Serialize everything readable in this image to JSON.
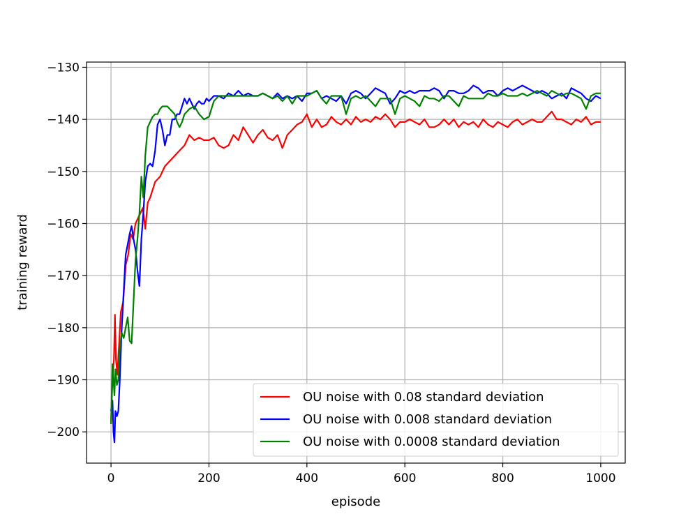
{
  "chart_data": {
    "type": "line",
    "title": "",
    "xlabel": "episode",
    "ylabel": "training reward",
    "xlim": [
      -50,
      1050
    ],
    "ylim": [
      -206,
      -129
    ],
    "xticks": [
      0,
      200,
      400,
      600,
      800,
      1000
    ],
    "yticks": [
      -200,
      -190,
      -180,
      -170,
      -160,
      -150,
      -140,
      -130
    ],
    "xtick_labels": [
      "0",
      "200",
      "400",
      "600",
      "800",
      "1000"
    ],
    "ytick_labels": [
      "−200",
      "−190",
      "−180",
      "−170",
      "−160",
      "−150",
      "−140",
      "−130"
    ],
    "grid": true,
    "legend_position": "lower-right",
    "series": [
      {
        "name": "OU noise with 0.08 standard deviation",
        "color": "#ff0000",
        "x": [
          0,
          3,
          6,
          8,
          10,
          13,
          16,
          20,
          25,
          30,
          35,
          40,
          45,
          50,
          55,
          60,
          65,
          70,
          75,
          80,
          90,
          100,
          110,
          120,
          130,
          140,
          150,
          160,
          170,
          180,
          190,
          200,
          210,
          220,
          230,
          240,
          250,
          260,
          270,
          280,
          290,
          300,
          310,
          320,
          330,
          340,
          350,
          360,
          370,
          380,
          390,
          400,
          410,
          420,
          430,
          440,
          450,
          460,
          470,
          480,
          490,
          500,
          510,
          520,
          530,
          540,
          550,
          560,
          570,
          580,
          590,
          600,
          610,
          620,
          630,
          640,
          650,
          660,
          670,
          680,
          690,
          700,
          710,
          720,
          730,
          740,
          750,
          760,
          770,
          780,
          790,
          800,
          810,
          820,
          830,
          840,
          850,
          860,
          870,
          880,
          890,
          900,
          910,
          920,
          930,
          940,
          950,
          960,
          970,
          980,
          990,
          1000
        ],
        "values": [
          -198,
          -190,
          -186,
          -177.5,
          -186,
          -189,
          -184,
          -177,
          -175,
          -168,
          -166,
          -162,
          -163,
          -160,
          -159,
          -158,
          -157,
          -161,
          -156,
          -155,
          -152,
          -151,
          -149,
          -148,
          -147,
          -146,
          -145,
          -143,
          -144,
          -143.5,
          -144,
          -144,
          -143.5,
          -145,
          -145.5,
          -145,
          -143,
          -144,
          -141.5,
          -143,
          -144.5,
          -143,
          -142,
          -143.5,
          -144,
          -143,
          -145.5,
          -143,
          -142,
          -141,
          -140.5,
          -139,
          -141.5,
          -140,
          -141.5,
          -141,
          -139.5,
          -140.5,
          -141,
          -140,
          -141,
          -139.5,
          -140.5,
          -140,
          -140.5,
          -139.5,
          -140,
          -139,
          -140,
          -141.5,
          -140.5,
          -140.5,
          -140,
          -140.5,
          -141,
          -140,
          -141.5,
          -141.5,
          -141,
          -140,
          -141,
          -140,
          -141.5,
          -140.5,
          -141,
          -140.5,
          -141.5,
          -140,
          -141,
          -141.5,
          -140.5,
          -141,
          -141.5,
          -140.5,
          -140,
          -141,
          -140.5,
          -140,
          -140.5,
          -140.5,
          -139.5,
          -138.5,
          -140,
          -140,
          -140.5,
          -141,
          -140,
          -140.5,
          -139.5,
          -141,
          -140.5,
          -140.5
        ]
      },
      {
        "name": "OU noise with 0.008 standard deviation",
        "color": "#0000ff",
        "x": [
          0,
          3,
          5,
          7,
          9,
          12,
          15,
          18,
          22,
          26,
          30,
          34,
          38,
          42,
          46,
          50,
          54,
          58,
          62,
          66,
          70,
          75,
          80,
          85,
          90,
          95,
          100,
          105,
          110,
          115,
          120,
          125,
          130,
          135,
          140,
          145,
          150,
          155,
          160,
          165,
          170,
          175,
          180,
          185,
          190,
          195,
          200,
          205,
          210,
          220,
          230,
          240,
          250,
          260,
          270,
          280,
          290,
          300,
          310,
          320,
          330,
          340,
          350,
          360,
          370,
          380,
          390,
          400,
          410,
          420,
          430,
          440,
          450,
          460,
          470,
          480,
          490,
          500,
          510,
          520,
          530,
          540,
          550,
          560,
          570,
          580,
          590,
          600,
          610,
          620,
          630,
          640,
          650,
          660,
          670,
          680,
          690,
          700,
          710,
          720,
          730,
          740,
          750,
          760,
          770,
          780,
          790,
          800,
          810,
          820,
          830,
          840,
          850,
          860,
          870,
          880,
          890,
          900,
          910,
          920,
          930,
          940,
          950,
          960,
          970,
          980,
          990,
          1000
        ],
        "values": [
          -196,
          -194,
          -200,
          -202,
          -196,
          -197,
          -196,
          -190,
          -180,
          -173,
          -166,
          -164,
          -162,
          -160.5,
          -163,
          -165,
          -169,
          -172,
          -163,
          -158,
          -152,
          -149,
          -148.5,
          -149,
          -146,
          -141,
          -140,
          -142,
          -145,
          -143,
          -143,
          -140,
          -140,
          -139,
          -139,
          -137.5,
          -136,
          -137,
          -136,
          -137,
          -138,
          -137,
          -136.5,
          -137,
          -137,
          -136,
          -136.5,
          -136,
          -135.5,
          -135.5,
          -136,
          -135,
          -135.5,
          -134.5,
          -135.5,
          -135,
          -135.5,
          -135.5,
          -135,
          -135.5,
          -136,
          -135,
          -136,
          -135.5,
          -136,
          -135.5,
          -136.5,
          -135,
          -135,
          -134.5,
          -136,
          -135.5,
          -136,
          -136.5,
          -135.5,
          -137,
          -135,
          -134.5,
          -135,
          -136,
          -135,
          -134,
          -134.5,
          -135,
          -137,
          -136,
          -134.5,
          -135,
          -134.5,
          -135,
          -134.5,
          -134.5,
          -134.5,
          -134,
          -134.5,
          -136,
          -134.5,
          -134.5,
          -135,
          -135,
          -134.5,
          -133.5,
          -134,
          -135,
          -134.5,
          -134.5,
          -135.5,
          -134.5,
          -134,
          -134.5,
          -134,
          -133.5,
          -134,
          -134.5,
          -135,
          -134.5,
          -135,
          -136,
          -135.5,
          -135,
          -136,
          -134,
          -134.5,
          -135,
          -136,
          -136.5,
          -135.5,
          -136
        ]
      },
      {
        "name": "OU noise with 0.0008 standard deviation",
        "color": "#008000",
        "x": [
          0,
          3,
          5,
          7,
          9,
          12,
          15,
          18,
          22,
          26,
          30,
          34,
          38,
          42,
          46,
          50,
          54,
          58,
          62,
          66,
          70,
          75,
          80,
          85,
          90,
          95,
          100,
          105,
          110,
          115,
          120,
          125,
          130,
          135,
          140,
          145,
          150,
          160,
          170,
          180,
          190,
          200,
          210,
          220,
          230,
          240,
          250,
          260,
          270,
          280,
          290,
          300,
          310,
          320,
          330,
          340,
          350,
          360,
          370,
          380,
          390,
          400,
          410,
          420,
          430,
          440,
          450,
          460,
          470,
          480,
          490,
          500,
          510,
          520,
          530,
          540,
          550,
          560,
          570,
          580,
          590,
          600,
          610,
          620,
          630,
          640,
          650,
          660,
          670,
          680,
          690,
          700,
          710,
          720,
          730,
          740,
          750,
          760,
          770,
          780,
          790,
          800,
          810,
          820,
          830,
          840,
          850,
          860,
          870,
          880,
          890,
          900,
          910,
          920,
          930,
          940,
          950,
          960,
          970,
          980,
          990,
          1000
        ],
        "values": [
          -198.5,
          -187,
          -190,
          -193,
          -188,
          -191,
          -190,
          -184,
          -181,
          -182,
          -180,
          -178,
          -182.5,
          -183,
          -175,
          -167,
          -163,
          -158,
          -151,
          -155,
          -147,
          -141.5,
          -140.5,
          -139.5,
          -139,
          -139,
          -138,
          -137.5,
          -137.5,
          -137.5,
          -138,
          -138.5,
          -139,
          -140.5,
          -141.5,
          -140.5,
          -139,
          -138,
          -137.5,
          -139,
          -140,
          -139.5,
          -136.5,
          -135.5,
          -135.5,
          -135.5,
          -135.5,
          -135.5,
          -135.5,
          -135.5,
          -135.5,
          -135.5,
          -135,
          -135.5,
          -136,
          -135.5,
          -136.5,
          -135.5,
          -137,
          -135.5,
          -135.5,
          -135.5,
          -135,
          -134.5,
          -136,
          -137,
          -135.5,
          -135.5,
          -135.5,
          -139,
          -136,
          -135.5,
          -136,
          -135.5,
          -136.5,
          -137.5,
          -136,
          -136,
          -136,
          -139,
          -136,
          -135.5,
          -136,
          -136.5,
          -137.5,
          -135.5,
          -136,
          -136,
          -136.5,
          -135.5,
          -135.5,
          -136.5,
          -137.5,
          -135.5,
          -136,
          -136,
          -136,
          -136,
          -135,
          -135.5,
          -135.5,
          -135,
          -135.5,
          -135.5,
          -135.5,
          -135,
          -135.5,
          -135,
          -134.5,
          -135,
          -135.5,
          -134.5,
          -135,
          -135.5,
          -135,
          -135,
          -135.5,
          -136,
          -138,
          -135.5,
          -135,
          -135
        ]
      }
    ]
  }
}
